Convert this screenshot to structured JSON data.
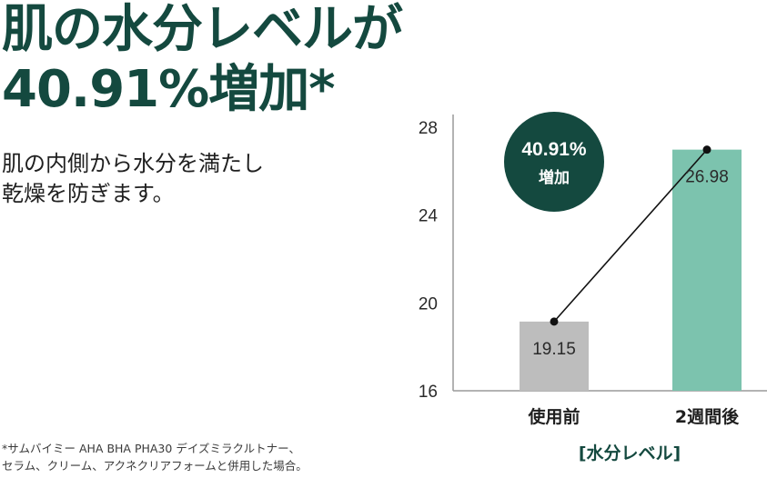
{
  "headline": {
    "line1": "肌の水分レベルが",
    "line2": "40.91%増加*"
  },
  "subcopy": {
    "line1": "肌の内側から水分を満たし",
    "line2": "乾燥を防ぎます。"
  },
  "footnote": {
    "line1": "*サムバイミー AHA BHA PHA30 デイズミラクルトナー、",
    "line2": "セラム、クリーム、アクネクリアフォームと併用した場合。"
  },
  "badge": {
    "value": "40.91%",
    "label": "増加"
  },
  "colors": {
    "brand_green": "#14493f",
    "bar_before": "#bdbdbd",
    "bar_after": "#7cc3ae",
    "axis": "#9a9a9a"
  },
  "chart_data": {
    "type": "bar",
    "categories": [
      "使用前",
      "2週間後"
    ],
    "values": [
      19.15,
      26.98
    ],
    "value_labels": [
      "19.15",
      "26.98"
    ],
    "overlay": "line",
    "ylim": [
      16,
      28
    ],
    "yticks": [
      16,
      20,
      24,
      28
    ],
    "xlabel": "[水分レベル]",
    "ylabel": "",
    "grid": false
  }
}
